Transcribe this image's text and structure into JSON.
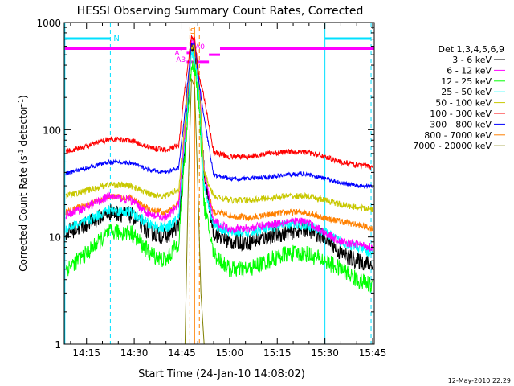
{
  "chart_data": {
    "type": "line",
    "title": "HESSI Observing Summary Count Rates, Corrected",
    "xlabel": "Start Time (24-Jan-10 14:08:02)",
    "ylabel_main": "Corrected Count Rate (s",
    "ylabel_sup1": "-1",
    "ylabel_mid": " detector",
    "ylabel_sup2": "-1",
    "ylabel_end": ")",
    "yscale": "log",
    "ylim": [
      1,
      1000
    ],
    "xlim": [
      8.0,
      105.5
    ],
    "x_unit": "minutes after 14:00 UT",
    "grid": false,
    "x_ticks": [
      {
        "label": "14:15",
        "value": 15
      },
      {
        "label": "14:30",
        "value": 30
      },
      {
        "label": "14:45",
        "value": 45
      },
      {
        "label": "15:00",
        "value": 60
      },
      {
        "label": "15:15",
        "value": 75
      },
      {
        "label": "15:30",
        "value": 90
      },
      {
        "label": "15:45",
        "value": 105
      }
    ],
    "y_ticks": [
      {
        "label": "1",
        "value": 1
      },
      {
        "label": "10",
        "value": 10
      },
      {
        "label": "100",
        "value": 100
      },
      {
        "label": "1000",
        "value": 1000
      }
    ],
    "legend_header": "Det 1,3,4,5,6,9",
    "legend_position": "right",
    "series": [
      {
        "name": "3 - 6 keV",
        "color": "#000000",
        "noise": 0.08,
        "points": [
          [
            8.5,
            11
          ],
          [
            15,
            13
          ],
          [
            22,
            17
          ],
          [
            29,
            16
          ],
          [
            35,
            11
          ],
          [
            40,
            10
          ],
          [
            44,
            13
          ],
          [
            46,
            70
          ],
          [
            48,
            600
          ],
          [
            49,
            600
          ],
          [
            50.5,
            250
          ],
          [
            52,
            40
          ],
          [
            55,
            11
          ],
          [
            60,
            9
          ],
          [
            66,
            9
          ],
          [
            72,
            10
          ],
          [
            78,
            11
          ],
          [
            84,
            12
          ],
          [
            90,
            10
          ],
          [
            95,
            7
          ],
          [
            100,
            6
          ],
          [
            105,
            5.5
          ]
        ]
      },
      {
        "name": "6 - 12 keV",
        "color": "#ff00ff",
        "noise": 0.04,
        "points": [
          [
            8.5,
            16
          ],
          [
            15,
            19
          ],
          [
            22,
            24
          ],
          [
            29,
            22
          ],
          [
            35,
            16
          ],
          [
            40,
            15
          ],
          [
            44,
            20
          ],
          [
            46,
            100
          ],
          [
            48,
            650
          ],
          [
            49,
            650
          ],
          [
            50.5,
            260
          ],
          [
            52,
            40
          ],
          [
            55,
            14
          ],
          [
            60,
            12
          ],
          [
            66,
            12
          ],
          [
            72,
            13
          ],
          [
            78,
            14
          ],
          [
            84,
            14
          ],
          [
            90,
            11
          ],
          [
            95,
            9
          ],
          [
            100,
            8.5
          ],
          [
            105,
            8
          ]
        ]
      },
      {
        "name": "12 - 25 keV",
        "color": "#00ff00",
        "noise": 0.08,
        "points": [
          [
            8.5,
            5
          ],
          [
            15,
            7
          ],
          [
            22,
            11
          ],
          [
            29,
            11
          ],
          [
            35,
            7
          ],
          [
            40,
            6
          ],
          [
            44,
            9
          ],
          [
            46,
            60
          ],
          [
            48,
            400
          ],
          [
            49,
            400
          ],
          [
            50.5,
            150
          ],
          [
            52,
            20
          ],
          [
            55,
            7
          ],
          [
            60,
            5
          ],
          [
            66,
            5
          ],
          [
            72,
            6
          ],
          [
            78,
            7
          ],
          [
            84,
            7
          ],
          [
            90,
            6
          ],
          [
            95,
            5
          ],
          [
            100,
            4
          ],
          [
            105,
            3.5
          ]
        ]
      },
      {
        "name": "25 - 50 keV",
        "color": "#00ffff",
        "noise": 0.05,
        "points": [
          [
            8.5,
            12
          ],
          [
            15,
            14
          ],
          [
            22,
            18
          ],
          [
            29,
            17
          ],
          [
            35,
            13
          ],
          [
            40,
            12
          ],
          [
            44,
            15
          ],
          [
            46,
            80
          ],
          [
            48,
            500
          ],
          [
            49,
            500
          ],
          [
            50.5,
            200
          ],
          [
            52,
            30
          ],
          [
            55,
            13
          ],
          [
            60,
            11
          ],
          [
            66,
            11
          ],
          [
            72,
            12
          ],
          [
            78,
            13
          ],
          [
            84,
            13
          ],
          [
            90,
            11
          ],
          [
            95,
            9
          ],
          [
            100,
            8
          ],
          [
            105,
            7
          ]
        ]
      },
      {
        "name": "50 - 100 keV",
        "color": "#c8c800",
        "noise": 0.03,
        "points": [
          [
            8.5,
            24
          ],
          [
            15,
            27
          ],
          [
            22,
            31
          ],
          [
            29,
            30
          ],
          [
            35,
            25
          ],
          [
            40,
            24
          ],
          [
            44,
            28
          ],
          [
            46,
            120
          ],
          [
            48,
            600
          ],
          [
            49,
            600
          ],
          [
            50.5,
            240
          ],
          [
            52,
            40
          ],
          [
            55,
            24
          ],
          [
            60,
            22
          ],
          [
            66,
            22
          ],
          [
            72,
            23
          ],
          [
            78,
            24
          ],
          [
            84,
            24
          ],
          [
            90,
            22
          ],
          [
            95,
            20
          ],
          [
            100,
            19
          ],
          [
            105,
            18
          ]
        ]
      },
      {
        "name": "100 - 300 keV",
        "color": "#ff0000",
        "noise": 0.025,
        "points": [
          [
            8.5,
            63
          ],
          [
            15,
            70
          ],
          [
            22,
            82
          ],
          [
            29,
            80
          ],
          [
            35,
            68
          ],
          [
            40,
            65
          ],
          [
            44,
            72
          ],
          [
            46,
            250
          ],
          [
            48,
            720
          ],
          [
            49,
            700
          ],
          [
            50.5,
            300
          ],
          [
            52,
            200
          ],
          [
            55,
            62
          ],
          [
            60,
            56
          ],
          [
            66,
            56
          ],
          [
            72,
            60
          ],
          [
            78,
            62
          ],
          [
            84,
            62
          ],
          [
            90,
            56
          ],
          [
            95,
            50
          ],
          [
            100,
            47
          ],
          [
            105,
            45
          ]
        ]
      },
      {
        "name": "300 - 800 keV",
        "color": "#0000ff",
        "noise": 0.02,
        "points": [
          [
            8.5,
            39
          ],
          [
            15,
            44
          ],
          [
            22,
            50
          ],
          [
            29,
            49
          ],
          [
            35,
            42
          ],
          [
            40,
            40
          ],
          [
            44,
            44
          ],
          [
            46,
            150
          ],
          [
            48,
            650
          ],
          [
            49,
            640
          ],
          [
            50.5,
            260
          ],
          [
            52,
            130
          ],
          [
            55,
            38
          ],
          [
            60,
            35
          ],
          [
            66,
            35
          ],
          [
            72,
            36
          ],
          [
            78,
            38
          ],
          [
            84,
            39
          ],
          [
            90,
            35
          ],
          [
            95,
            32
          ],
          [
            100,
            30
          ],
          [
            105,
            30
          ]
        ]
      },
      {
        "name": "800 - 7000 keV",
        "color": "#ff8000",
        "noise": 0.03,
        "points": [
          [
            8.5,
            17
          ],
          [
            15,
            20
          ],
          [
            22,
            24
          ],
          [
            29,
            23
          ],
          [
            35,
            18
          ],
          [
            40,
            17
          ],
          [
            44,
            21
          ],
          [
            46,
            90
          ],
          [
            48,
            550
          ],
          [
            49,
            550
          ],
          [
            50.5,
            220
          ],
          [
            52,
            35
          ],
          [
            55,
            17
          ],
          [
            60,
            16
          ],
          [
            66,
            15
          ],
          [
            72,
            16
          ],
          [
            78,
            17
          ],
          [
            84,
            17
          ],
          [
            90,
            15
          ],
          [
            95,
            14
          ],
          [
            100,
            13
          ],
          [
            105,
            12
          ]
        ]
      },
      {
        "name": "7000 - 20000 keV",
        "color": "#808000",
        "noise": 0.0,
        "points": [
          [
            46,
            1
          ],
          [
            47,
            30
          ],
          [
            48,
            300
          ],
          [
            49,
            250
          ],
          [
            50,
            30
          ],
          [
            51,
            3
          ],
          [
            52,
            1
          ]
        ]
      }
    ],
    "annotations": {
      "night_label": "N",
      "saa_label": "S",
      "attenuator_labels": [
        "A1",
        "A0",
        "A3"
      ],
      "cyan_vlines_dashed": [
        22.5,
        104.5
      ],
      "cyan_vlines_solid": [
        8.2,
        90.0
      ],
      "orange_vlines_dashed": [
        47.5,
        50.5
      ],
      "orange_vlines_solid": [
        49.0
      ],
      "night_bars": [
        [
          8.2,
          22.5
        ],
        [
          90.0,
          104.5
        ]
      ],
      "magenta_bars": [
        {
          "x": [
            8.2,
            46.5
          ],
          "level": 570
        },
        {
          "x": [
            46.5,
            47.5
          ],
          "level": 520
        },
        {
          "x": [
            47.5,
            49.3
          ],
          "level": 570
        },
        {
          "x": [
            46.5,
            53.5
          ],
          "level": 430
        },
        {
          "x": [
            53.5,
            57.0
          ],
          "level": 500
        },
        {
          "x": [
            57.0,
            105.5
          ],
          "level": 570
        }
      ]
    },
    "footer_timestamp": "12-May-2010 22:29"
  }
}
